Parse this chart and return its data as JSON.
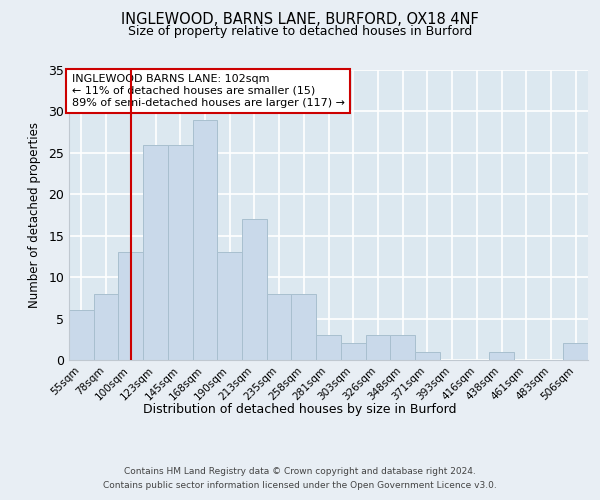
{
  "title1": "INGLEWOOD, BARNS LANE, BURFORD, OX18 4NF",
  "title2": "Size of property relative to detached houses in Burford",
  "xlabel": "Distribution of detached houses by size in Burford",
  "ylabel": "Number of detached properties",
  "categories": [
    "55sqm",
    "78sqm",
    "100sqm",
    "123sqm",
    "145sqm",
    "168sqm",
    "190sqm",
    "213sqm",
    "235sqm",
    "258sqm",
    "281sqm",
    "303sqm",
    "326sqm",
    "348sqm",
    "371sqm",
    "393sqm",
    "416sqm",
    "438sqm",
    "461sqm",
    "483sqm",
    "506sqm"
  ],
  "values": [
    6,
    8,
    13,
    26,
    26,
    29,
    13,
    17,
    8,
    8,
    3,
    2,
    3,
    3,
    1,
    0,
    0,
    1,
    0,
    0,
    2
  ],
  "bar_color": "#c9d9ea",
  "bar_edge_color": "#a8bfcf",
  "vline_x": 2,
  "vline_color": "#cc0000",
  "ylim": [
    0,
    35
  ],
  "yticks": [
    0,
    5,
    10,
    15,
    20,
    25,
    30,
    35
  ],
  "annotation_title": "INGLEWOOD BARNS LANE: 102sqm",
  "annotation_line1": "← 11% of detached houses are smaller (15)",
  "annotation_line2": "89% of semi-detached houses are larger (117) →",
  "annotation_box_color": "#ffffff",
  "annotation_border_color": "#cc0000",
  "footer1": "Contains HM Land Registry data © Crown copyright and database right 2024.",
  "footer2": "Contains public sector information licensed under the Open Government Licence v3.0.",
  "fig_bg_color": "#e8eef4",
  "plot_bg_color": "#dce8f0",
  "grid_color": "#ffffff"
}
